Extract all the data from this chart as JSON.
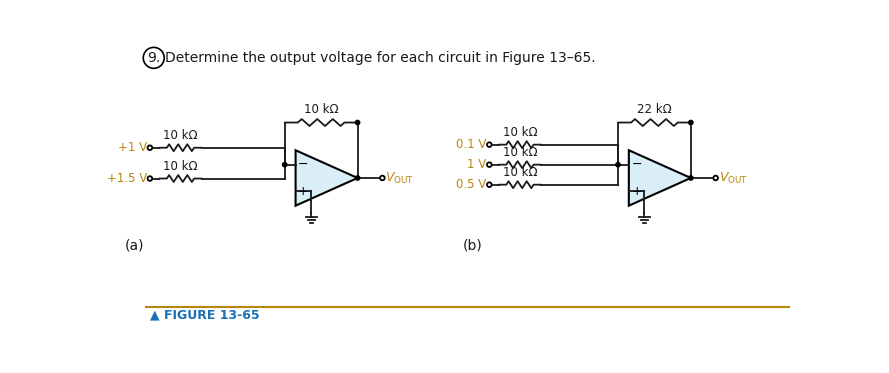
{
  "title_number": "9.",
  "title_text": "Determine the output voltage for each circuit in Figure 13–65.",
  "figure_label": "▲ FIGURE 13-65",
  "bg_color": "#ffffff",
  "black": "#1a1a1a",
  "gold": "#b8860b",
  "blue_fig": "#1a6fb5",
  "op_amp_fill": "#d9eef7",
  "circuit_a": {
    "label": "(a)",
    "v1_label": "+1 V",
    "v2_label": "+1.5 V",
    "r1_label": "10 kΩ",
    "r2_label": "10 kΩ",
    "rf_label": "10 kΩ"
  },
  "circuit_b": {
    "label": "(b)",
    "v1_label": "0.1 V",
    "v2_label": "1 V",
    "v3_label": "0.5 V",
    "r1_label": "10 kΩ",
    "r2_label": "10 kΩ",
    "r3_label": "10 kΩ",
    "rf_label": "22 kΩ"
  }
}
